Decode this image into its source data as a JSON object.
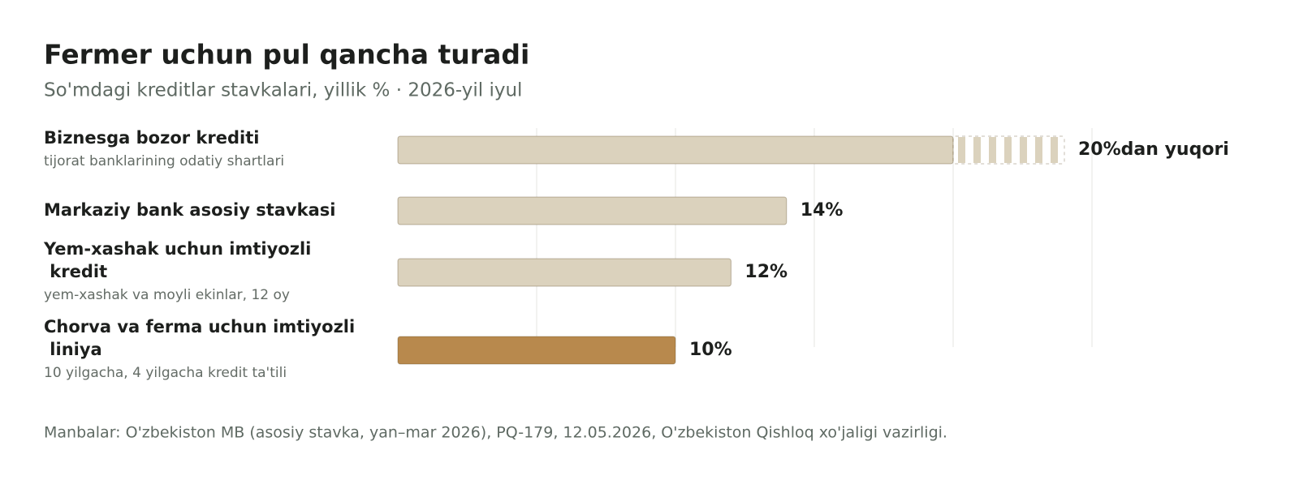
{
  "chart_data": {
    "type": "hbar",
    "title": "Fermer uchun pul qancha turadi",
    "subtitle": "So'mdagi kreditlar stavkalari, yillik % · 2026-yil iyul",
    "categories": [
      "Biznesga bozor krediti",
      "Markaziy bank asosiy stavkasi",
      "Yem-xashak uchun imtiyozli kredit",
      "Chorva va ferma uchun imtiyozli liniya"
    ],
    "sublabels": [
      "tijorat banklarining odatiy shartlari",
      null,
      "yem-xashak va moyli ekinlar, 12 oy",
      "10 yilgacha, 4 yilgacha kredit ta'tili"
    ],
    "values": [
      20,
      14,
      12,
      10
    ],
    "value_labels": [
      "20%dan yuqori",
      "14%",
      "12%",
      "10%"
    ],
    "colors": [
      "#dbd2bd",
      "#dbd2bd",
      "#dbd2bd",
      "#b8894d"
    ],
    "xlim": [
      0,
      25
    ],
    "xticks": [
      5,
      10,
      15,
      20,
      25
    ],
    "tick_labels": false,
    "grid": true,
    "source": "Manbalar: O'zbekiston MB (asosiy stavka, yan–mar 2026), PQ-179, 12.05.2026, O'zbekiston Qishloq xo'jaligi vazirligi."
  }
}
